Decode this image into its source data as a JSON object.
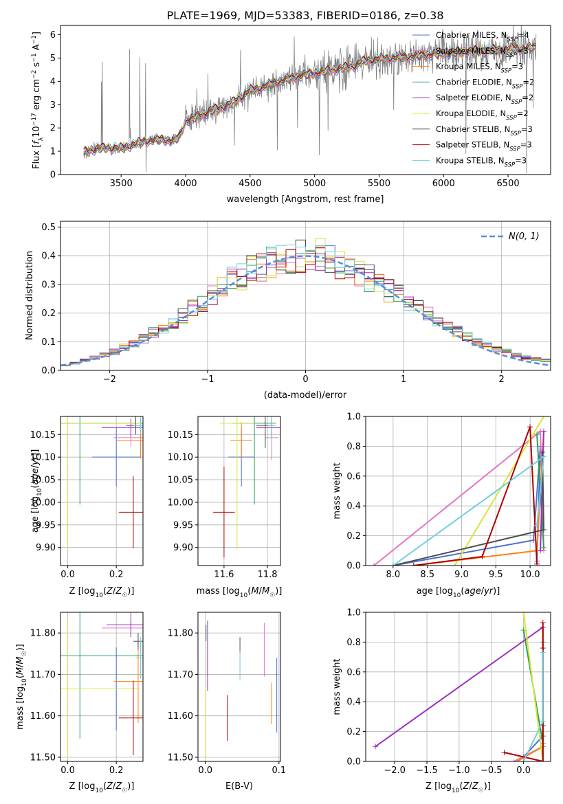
{
  "title": "PLATE=1969, MJD=53383, FIBERID=0186, z=0.38",
  "colors": {
    "Chabrier MILES": "#4a6fd0",
    "Salpeter MILES": "#e377c2",
    "Kroupa MILES": "#ff7f0e",
    "Chabrier ELODIE": "#2ca05a",
    "Salpeter ELODIE": "#9d2fbf",
    "Kroupa ELODIE": "#d9e43a",
    "Chabrier STELIB": "#4d4d4d",
    "Salpeter STELIB": "#b00000",
    "Kroupa STELIB": "#6fcfe0",
    "data": "#808080",
    "normal": "#5b8bd6"
  },
  "chart_data": [
    {
      "id": "spectrum",
      "type": "line",
      "title": "PLATE=1969, MJD=53383, FIBERID=0186, z=0.38",
      "xlabel": "wavelength [Angstrom, rest frame]",
      "ylabel_parts": [
        "Flux [",
        "f",
        "λ",
        "10",
        "−17",
        " erg cm",
        "−2",
        " s",
        "−1",
        " A",
        "−1",
        "]"
      ],
      "xlim": [
        3030,
        6830
      ],
      "ylim": [
        0,
        6.4
      ],
      "xticks": [
        3500,
        4000,
        4500,
        5000,
        5500,
        6000,
        6500
      ],
      "yticks": [
        0,
        1,
        2,
        3,
        4,
        5,
        6
      ],
      "series_continuum": {
        "x": [
          3210,
          3300,
          3400,
          3500,
          3600,
          3700,
          3800,
          3900,
          3950,
          4000,
          4100,
          4200,
          4300,
          4400,
          4500,
          4600,
          4700,
          4800,
          4900,
          5000,
          5100,
          5200,
          5300,
          5400,
          5500,
          5600,
          5700,
          5800,
          5900,
          6000,
          6100,
          6200,
          6300,
          6400,
          6500,
          6600,
          6700
        ],
        "y": [
          0.95,
          1.1,
          1.15,
          1.12,
          1.3,
          1.45,
          1.5,
          1.45,
          1.6,
          2.3,
          2.5,
          2.75,
          2.9,
          3.2,
          3.6,
          3.75,
          3.95,
          4.1,
          4.25,
          4.35,
          4.45,
          4.55,
          4.65,
          4.9,
          4.95,
          5.0,
          5.05,
          5.1,
          5.15,
          5.2,
          5.25,
          5.3,
          5.3,
          5.35,
          5.4,
          5.4,
          5.45
        ]
      },
      "legend": [
        {
          "name": "Chabrier MILES, N",
          "sub": "SSP",
          "tail": "=4"
        },
        {
          "name": "Salpeter MILES, N",
          "sub": "SSP",
          "tail": "=3"
        },
        {
          "name": "Kroupa MILES, N",
          "sub": "SSP",
          "tail": "=3"
        },
        {
          "name": "Chabrier ELODIE, N",
          "sub": "SSP",
          "tail": "=2"
        },
        {
          "name": "Salpeter ELODIE, N",
          "sub": "SSP",
          "tail": "=2"
        },
        {
          "name": "Kroupa ELODIE, N",
          "sub": "SSP",
          "tail": "=2"
        },
        {
          "name": "Chabrier STELIB, N",
          "sub": "SSP",
          "tail": "=3"
        },
        {
          "name": "Salpeter STELIB, N",
          "sub": "SSP",
          "tail": "=3"
        },
        {
          "name": "Kroupa STELIB, N",
          "sub": "SSP",
          "tail": "=3"
        }
      ]
    },
    {
      "id": "residuals",
      "type": "bar",
      "xlabel": "(data-model)/error",
      "ylabel": "Normed distribution",
      "xlim": [
        -2.5,
        2.5
      ],
      "ylim": [
        0,
        0.52
      ],
      "xticks": [
        -2,
        -1,
        0,
        1,
        2
      ],
      "yticks": [
        0.0,
        0.1,
        0.2,
        0.3,
        0.4,
        0.5
      ],
      "bin_width": 0.1,
      "bin_centers": [
        -2.45,
        -2.35,
        -2.25,
        -2.15,
        -2.05,
        -1.95,
        -1.85,
        -1.75,
        -1.65,
        -1.55,
        -1.45,
        -1.35,
        -1.25,
        -1.15,
        -1.05,
        -0.95,
        -0.85,
        -0.75,
        -0.65,
        -0.55,
        -0.45,
        -0.35,
        -0.25,
        -0.15,
        -0.05,
        0.05,
        0.15,
        0.25,
        0.35,
        0.45,
        0.55,
        0.65,
        0.75,
        0.85,
        0.95,
        1.05,
        1.15,
        1.25,
        1.35,
        1.45,
        1.55,
        1.65,
        1.75,
        1.85,
        1.95,
        2.05,
        2.15,
        2.25,
        2.35,
        2.45
      ],
      "base_values": [
        0.018,
        0.025,
        0.035,
        0.045,
        0.055,
        0.065,
        0.08,
        0.095,
        0.11,
        0.13,
        0.15,
        0.17,
        0.19,
        0.215,
        0.24,
        0.265,
        0.29,
        0.315,
        0.33,
        0.35,
        0.36,
        0.375,
        0.38,
        0.39,
        0.4,
        0.41,
        0.4,
        0.38,
        0.365,
        0.35,
        0.34,
        0.32,
        0.3,
        0.28,
        0.26,
        0.24,
        0.215,
        0.195,
        0.175,
        0.155,
        0.135,
        0.115,
        0.1,
        0.085,
        0.075,
        0.065,
        0.055,
        0.045,
        0.04,
        0.035
      ],
      "normal_legend": "N(0, 1)"
    },
    {
      "id": "age_vs_Z",
      "type": "scatter",
      "xlabel": "Z [log10(Z/Z☉)]",
      "ylabel": "age  [log10(age/yr)]",
      "xlim": [
        -0.03,
        0.31
      ],
      "ylim": [
        9.86,
        10.19
      ],
      "xticks": [
        0.0,
        0.2
      ],
      "yticks": [
        9.9,
        9.95,
        10.0,
        10.05,
        10.1,
        10.15
      ],
      "points": [
        {
          "model": "Chabrier MILES",
          "x": 0.2,
          "y": 10.1,
          "xerr": 0.1,
          "yerr": 0.065
        },
        {
          "model": "Salpeter MILES",
          "x": 0.26,
          "y": 10.143,
          "xerr": 0.07,
          "yerr": 0.02
        },
        {
          "model": "Kroupa MILES",
          "x": 0.3,
          "y": 10.137,
          "xerr": 0.1,
          "yerr": 0.04
        },
        {
          "model": "Chabrier ELODIE",
          "x": 0.05,
          "y": 10.175,
          "xerr": 0.3,
          "yerr": 0.18
        },
        {
          "model": "Salpeter ELODIE",
          "x": 0.26,
          "y": 10.165,
          "xerr": 0.12,
          "yerr": 0.02
        },
        {
          "model": "Kroupa ELODIE",
          "x": 0.0,
          "y": 10.175,
          "xerr": 0.3,
          "yerr": 0.28
        },
        {
          "model": "Chabrier STELIB",
          "x": 0.28,
          "y": 10.17,
          "xerr": 0.04,
          "yerr": 0.02
        },
        {
          "model": "Salpeter STELIB",
          "x": 0.27,
          "y": 9.978,
          "xerr": 0.06,
          "yerr": 0.08
        },
        {
          "model": "Kroupa STELIB",
          "x": 0.3,
          "y": 10.17,
          "xerr": 0.03,
          "yerr": 0.02
        }
      ]
    },
    {
      "id": "age_vs_mass",
      "type": "scatter",
      "xlabel": "mass [log10(M/M☉)]",
      "ylabel": "",
      "xlim": [
        11.48,
        11.86
      ],
      "ylim": [
        9.86,
        10.19
      ],
      "xticks": [
        11.6,
        11.8
      ],
      "yticks": [
        9.9,
        9.95,
        10.0,
        10.05,
        10.1,
        10.15
      ],
      "points": [
        {
          "model": "Chabrier MILES",
          "x": 11.68,
          "y": 10.1,
          "xerr": 0.06,
          "yerr": 0.065
        },
        {
          "model": "Salpeter MILES",
          "x": 11.82,
          "y": 10.143,
          "xerr": 0.03,
          "yerr": 0.05
        },
        {
          "model": "Kroupa MILES",
          "x": 11.68,
          "y": 10.137,
          "xerr": 0.05,
          "yerr": 0.04
        },
        {
          "model": "Chabrier ELODIE",
          "x": 11.74,
          "y": 10.175,
          "xerr": 0.1,
          "yerr": 0.18
        },
        {
          "model": "Salpeter ELODIE",
          "x": 11.82,
          "y": 10.165,
          "xerr": 0.07,
          "yerr": 0.02
        },
        {
          "model": "Kroupa ELODIE",
          "x": 11.66,
          "y": 10.175,
          "xerr": 0.08,
          "yerr": 0.28
        },
        {
          "model": "Chabrier STELIB",
          "x": 11.79,
          "y": 10.17,
          "xerr": 0.04,
          "yerr": 0.05
        },
        {
          "model": "Salpeter STELIB",
          "x": 11.6,
          "y": 9.978,
          "xerr": 0.05,
          "yerr": 0.1
        },
        {
          "model": "Kroupa STELIB",
          "x": 11.82,
          "y": 10.17,
          "xerr": 0.02,
          "yerr": 0.04
        }
      ]
    },
    {
      "id": "weight_vs_age",
      "type": "line",
      "xlabel": "age  [log10(age/yr)]",
      "ylabel": "mass weight",
      "xlim": [
        7.6,
        10.3
      ],
      "ylim": [
        0,
        1
      ],
      "xticks": [
        8.0,
        8.5,
        9.0,
        9.5,
        10.0
      ],
      "yticks": [
        0.0,
        0.2,
        0.4,
        0.6,
        0.8,
        1.0
      ],
      "series": [
        {
          "model": "Chabrier MILES",
          "x": [
            8.0,
            10.05,
            10.15,
            10.1
          ],
          "y": [
            0.0,
            0.17,
            0.8,
            0.03
          ]
        },
        {
          "model": "Salpeter MILES",
          "x": [
            7.72,
            10.15,
            10.2
          ],
          "y": [
            0.0,
            0.9,
            0.1
          ]
        },
        {
          "model": "Kroupa MILES",
          "x": [
            8.3,
            10.1,
            10.2
          ],
          "y": [
            0.0,
            0.1,
            0.9
          ]
        },
        {
          "model": "Chabrier ELODIE",
          "x": [
            10.2,
            10.1
          ],
          "y": [
            0.12,
            0.88
          ]
        },
        {
          "model": "Salpeter ELODIE",
          "x": [
            10.15,
            10.2
          ],
          "y": [
            0.1,
            0.9
          ]
        },
        {
          "model": "Kroupa ELODIE",
          "x": [
            8.9,
            10.2
          ],
          "y": [
            0.0,
            1.0
          ]
        },
        {
          "model": "Chabrier STELIB",
          "x": [
            8.0,
            10.2,
            10.18
          ],
          "y": [
            0.0,
            0.24,
            0.76
          ]
        },
        {
          "model": "Salpeter STELIB",
          "x": [
            8.3,
            9.3,
            10.0,
            10.1
          ],
          "y": [
            0.0,
            0.06,
            0.93,
            0.01
          ]
        },
        {
          "model": "Kroupa STELIB",
          "x": [
            8.0,
            10.2,
            10.1
          ],
          "y": [
            0.0,
            0.73,
            0.27
          ]
        }
      ]
    },
    {
      "id": "mass_vs_Z",
      "type": "scatter",
      "xlabel": "Z [log10(Z/Z☉)]",
      "ylabel": "mass [log10(M/M☉)]",
      "xlim": [
        -0.03,
        0.31
      ],
      "ylim": [
        11.49,
        11.85
      ],
      "xticks": [
        0.0,
        0.2
      ],
      "yticks": [
        11.5,
        11.6,
        11.7,
        11.8
      ],
      "points": [
        {
          "model": "Chabrier MILES",
          "x": 0.2,
          "y": 11.665,
          "xerr": 0.1,
          "yerr": 0.1
        },
        {
          "model": "Salpeter MILES",
          "x": 0.26,
          "y": 11.812,
          "xerr": 0.12,
          "yerr": 0.02
        },
        {
          "model": "Kroupa MILES",
          "x": 0.29,
          "y": 11.683,
          "xerr": 0.1,
          "yerr": 0.1
        },
        {
          "model": "Chabrier ELODIE",
          "x": 0.05,
          "y": 11.745,
          "xerr": 0.3,
          "yerr": 0.2
        },
        {
          "model": "Salpeter ELODIE",
          "x": 0.26,
          "y": 11.82,
          "xerr": 0.1,
          "yerr": 0.03
        },
        {
          "model": "Kroupa ELODIE",
          "x": 0.0,
          "y": 11.665,
          "xerr": 0.3,
          "yerr": 0.17
        },
        {
          "model": "Chabrier STELIB",
          "x": 0.29,
          "y": 11.78,
          "xerr": 0.02,
          "yerr": 0.02
        },
        {
          "model": "Salpeter STELIB",
          "x": 0.27,
          "y": 11.595,
          "xerr": 0.06,
          "yerr": 0.09
        },
        {
          "model": "Kroupa STELIB",
          "x": 0.3,
          "y": 11.74,
          "xerr": 0.02,
          "yerr": 0.05
        }
      ]
    },
    {
      "id": "mass_vs_ebv",
      "type": "scatter",
      "xlabel": "E(B-V)",
      "ylabel": "",
      "xlim": [
        -0.01,
        0.102
      ],
      "ylim": [
        11.49,
        11.85
      ],
      "xticks": [
        0.0,
        0.1
      ],
      "yticks": [
        11.5,
        11.6,
        11.7,
        11.8
      ],
      "points": [
        {
          "model": "Chabrier MILES",
          "x": 0.097,
          "y": 11.65,
          "xerr": 0.0,
          "yerr": 0.09
        },
        {
          "model": "Salpeter MILES",
          "x": 0.08,
          "y": 11.76,
          "xerr": 0.0,
          "yerr": 0.065
        },
        {
          "model": "Kroupa MILES",
          "x": 0.09,
          "y": 11.63,
          "xerr": 0.0,
          "yerr": 0.05
        },
        {
          "model": "Chabrier ELODIE",
          "x": 0.001,
          "y": 11.8,
          "xerr": 0.0,
          "yerr": 0.02
        },
        {
          "model": "Salpeter ELODIE",
          "x": 0.003,
          "y": 11.745,
          "xerr": 0.0,
          "yerr": 0.085
        },
        {
          "model": "Kroupa ELODIE",
          "x": 0.0,
          "y": 11.58,
          "xerr": 0.0,
          "yerr": 0.09
        },
        {
          "model": "Chabrier STELIB",
          "x": 0.047,
          "y": 11.77,
          "xerr": 0.0,
          "yerr": 0.02
        },
        {
          "model": "Salpeter STELIB",
          "x": 0.03,
          "y": 11.595,
          "xerr": 0.0,
          "yerr": 0.055
        },
        {
          "model": "Kroupa STELIB",
          "x": 0.047,
          "y": 11.72,
          "xerr": 0.0,
          "yerr": 0.035
        }
      ]
    },
    {
      "id": "weight_vs_Z",
      "type": "line",
      "xlabel": "Z [log10(Z/Z☉)]",
      "ylabel": "mass weight",
      "xlim": [
        -2.45,
        0.42
      ],
      "ylim": [
        0,
        1
      ],
      "xticks": [
        -2.0,
        -1.5,
        -1.0,
        -0.5,
        0.0
      ],
      "yticks": [
        0.0,
        0.2,
        0.4,
        0.6,
        0.8,
        1.0
      ],
      "series": [
        {
          "model": "Chabrier MILES",
          "x": [
            0.0,
            0.3,
            0.3
          ],
          "y": [
            0.03,
            0.17,
            0.8
          ]
        },
        {
          "model": "Salpeter MILES",
          "x": [
            -0.15,
            0.3,
            0.3
          ],
          "y": [
            0.0,
            0.1,
            0.9
          ]
        },
        {
          "model": "Kroupa MILES",
          "x": [
            -0.1,
            0.3,
            0.3
          ],
          "y": [
            0.0,
            0.1,
            0.9
          ]
        },
        {
          "model": "Chabrier ELODIE",
          "x": [
            0.3,
            0.0
          ],
          "y": [
            0.12,
            0.88
          ]
        },
        {
          "model": "Salpeter ELODIE",
          "x": [
            -2.3,
            0.3
          ],
          "y": [
            0.1,
            0.9
          ]
        },
        {
          "model": "Kroupa ELODIE",
          "x": [
            0.3,
            0.0
          ],
          "y": [
            0.0,
            1.0
          ]
        },
        {
          "model": "Chabrier STELIB",
          "x": [
            0.3,
            0.3,
            0.3
          ],
          "y": [
            0.0,
            0.24,
            0.76
          ]
        },
        {
          "model": "Salpeter STELIB",
          "x": [
            -0.3,
            0.3,
            0.3
          ],
          "y": [
            0.06,
            0.0,
            0.93
          ]
        },
        {
          "model": "Kroupa STELIB",
          "x": [
            0.0,
            0.3,
            0.3
          ],
          "y": [
            0.0,
            0.27,
            0.73
          ]
        }
      ]
    }
  ]
}
